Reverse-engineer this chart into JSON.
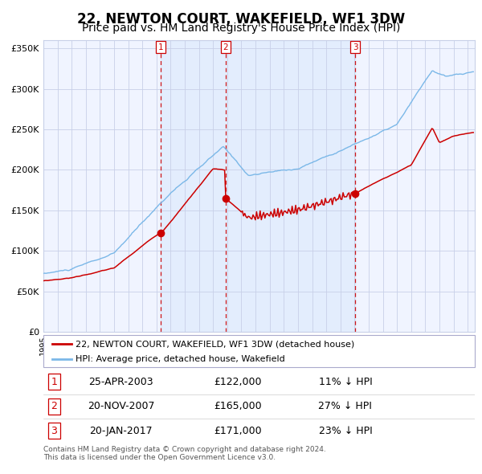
{
  "title": "22, NEWTON COURT, WAKEFIELD, WF1 3DW",
  "subtitle": "Price paid vs. HM Land Registry's House Price Index (HPI)",
  "legend_line1": "22, NEWTON COURT, WAKEFIELD, WF1 3DW (detached house)",
  "legend_line2": "HPI: Average price, detached house, Wakefield",
  "transactions": [
    {
      "num": 1,
      "date": "25-APR-2003",
      "price": 122000,
      "note": "11% ↓ HPI"
    },
    {
      "num": 2,
      "date": "20-NOV-2007",
      "price": 165000,
      "note": "27% ↓ HPI"
    },
    {
      "num": 3,
      "date": "20-JAN-2017",
      "price": 171000,
      "note": "23% ↓ HPI"
    }
  ],
  "transaction_dates_decimal": [
    2003.31,
    2007.89,
    2017.05
  ],
  "transaction_prices": [
    122000,
    165000,
    171000
  ],
  "copyright": "Contains HM Land Registry data © Crown copyright and database right 2024.\nThis data is licensed under the Open Government Licence v3.0.",
  "hpi_color": "#7bb8e8",
  "price_color": "#cc0000",
  "marker_color": "#cc0000",
  "vline_color": "#cc0000",
  "chart_bg": "#f0f4ff",
  "grid_color": "#c8d0e8",
  "title_fontsize": 12,
  "subtitle_fontsize": 10,
  "ylim": [
    0,
    360000
  ],
  "yticks": [
    0,
    50000,
    100000,
    150000,
    200000,
    250000,
    300000,
    350000
  ],
  "xlim_start": 1995.0,
  "xlim_end": 2025.5
}
